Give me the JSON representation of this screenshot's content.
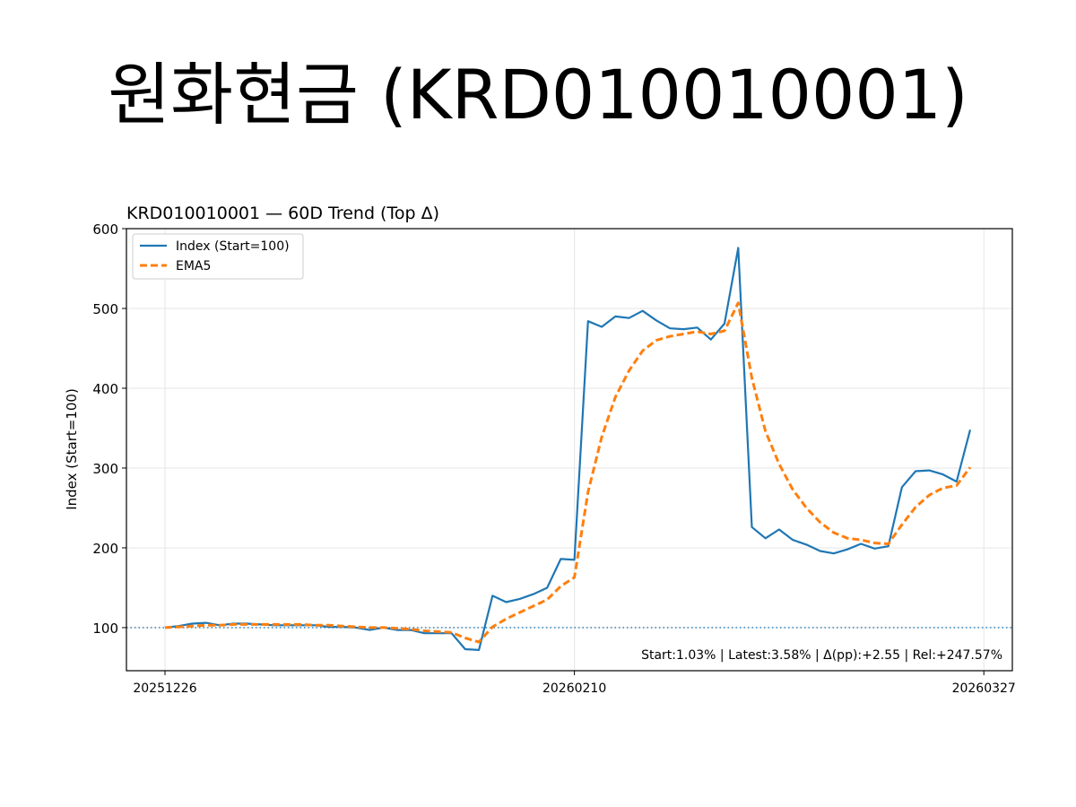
{
  "slide": {
    "title": "원화현금 (KRD010010001)"
  },
  "chart_data": {
    "type": "line",
    "title": "KRD010010001 — 60D Trend (Top Δ)",
    "xlabel": "",
    "ylabel": "Index (Start=100)",
    "ylim": [
      46,
      600
    ],
    "yticks": [
      100,
      200,
      300,
      400,
      500,
      600
    ],
    "xtick_labels": [
      "20251226",
      "20260210",
      "20260327"
    ],
    "xtick_index": [
      0,
      30,
      60
    ],
    "baseline": 100,
    "grid": true,
    "legend_position": "upper-left",
    "annotation": "Start:1.03% | Latest:3.58% | Δ(pp):+2.55 | Rel:+247.57%",
    "colors": {
      "index": "#1f77b4",
      "ema": "#ff7f0e"
    },
    "series": [
      {
        "name": "Index (Start=100)",
        "style": "solid",
        "values": [
          100,
          102,
          105,
          106,
          103,
          105,
          105,
          104,
          103,
          103,
          103,
          103,
          101,
          101,
          100,
          97,
          100,
          97,
          97,
          93,
          93,
          93,
          73,
          72,
          140,
          132,
          136,
          142,
          150,
          186,
          185,
          484,
          477,
          490,
          488,
          497,
          485,
          475,
          474,
          476,
          461,
          481,
          576,
          226,
          212,
          223,
          210,
          204,
          196,
          193,
          198,
          205,
          199,
          202,
          276,
          296,
          297,
          292,
          283,
          348
        ]
      },
      {
        "name": "EMA5",
        "style": "dashed",
        "values": [
          100,
          101,
          102,
          103,
          103,
          104,
          104,
          104,
          104,
          104,
          104,
          103,
          103,
          102,
          101,
          100,
          100,
          99,
          98,
          96,
          95,
          94,
          87,
          82,
          101,
          111,
          119,
          127,
          135,
          152,
          163,
          270,
          339,
          389,
          422,
          447,
          460,
          465,
          468,
          471,
          468,
          472,
          507,
          413,
          346,
          305,
          273,
          250,
          232,
          219,
          212,
          210,
          206,
          205,
          229,
          251,
          266,
          275,
          278,
          301
        ]
      }
    ]
  }
}
